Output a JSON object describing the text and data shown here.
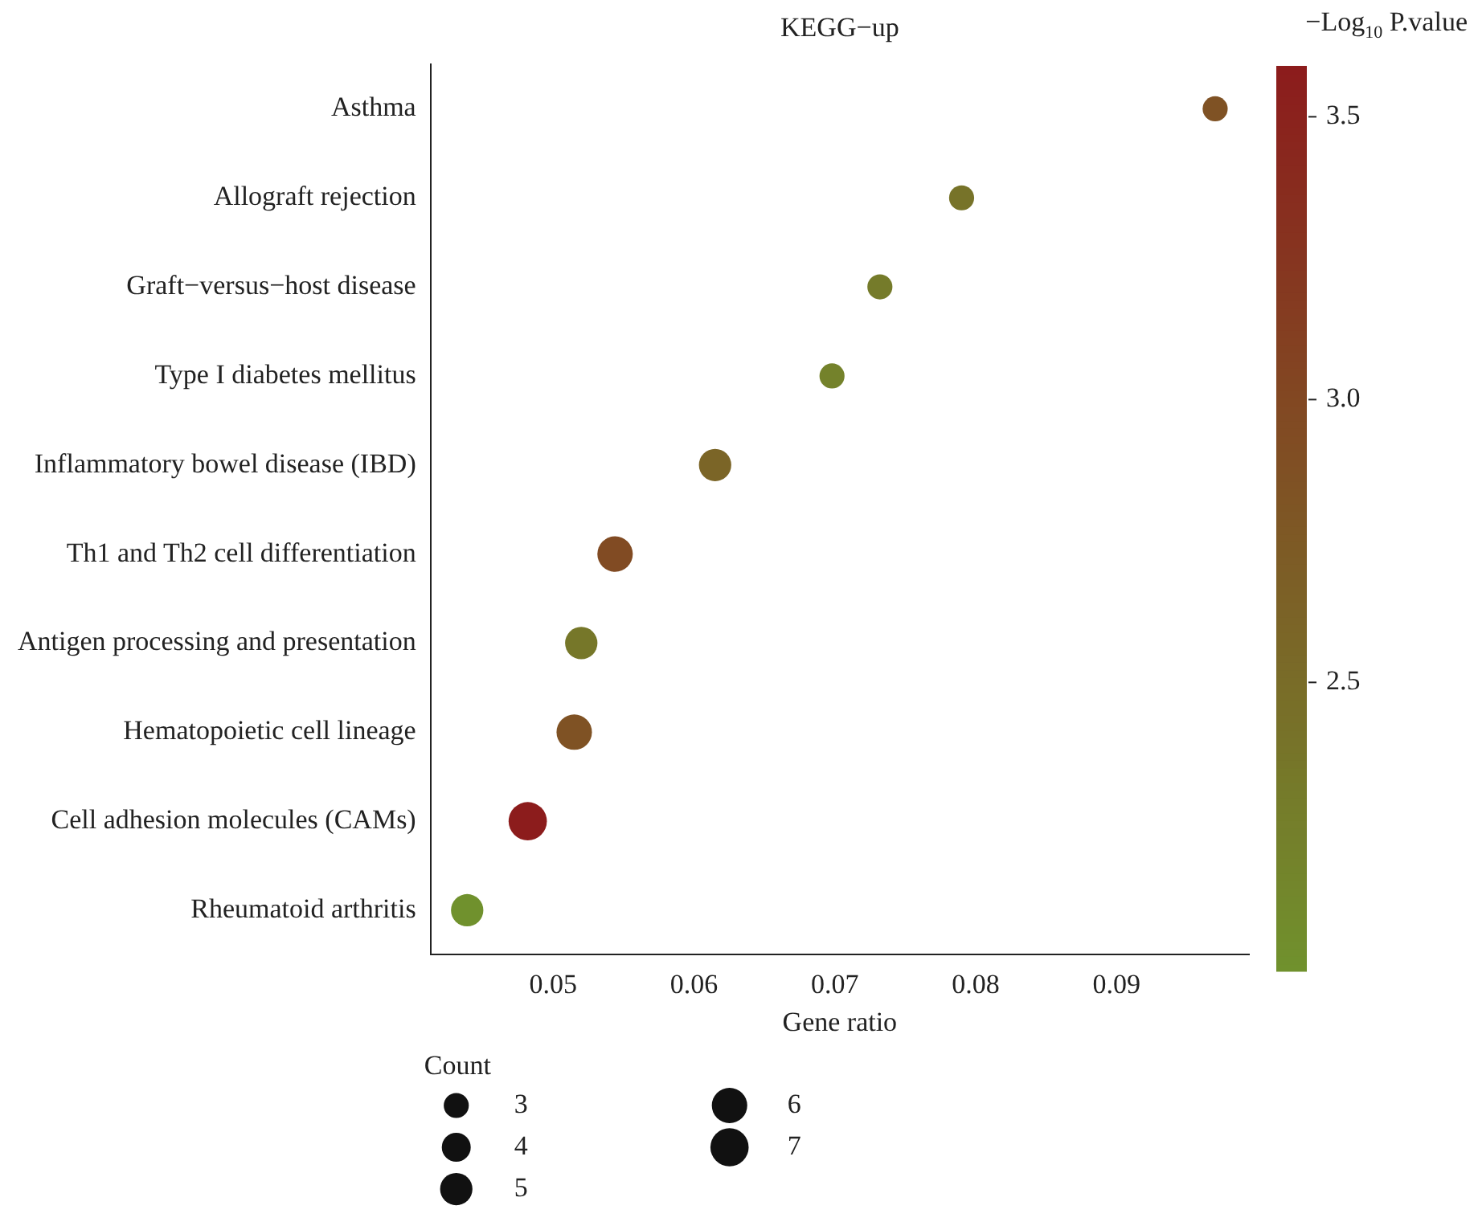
{
  "chart_data": {
    "type": "bubble",
    "orientation": "horizontal",
    "title": "KEGG−up",
    "xlabel": "Gene ratio",
    "clabel": "−Log$_{10}$ P.value",
    "legend_title": "Count",
    "categories": [
      "Asthma",
      "Allograft rejection",
      "Graft−versus−host disease",
      "Type I diabetes mellitus",
      "Inflammatory bowel disease (IBD)",
      "Th1 and Th2 cell differentiation",
      "Antigen processing and presentation",
      "Hematopoietic cell lineage",
      "Cell adhesion molecules (CAMs)",
      "Rheumatoid arthritis"
    ],
    "values": [
      0.097,
      0.079,
      0.0732,
      0.0698,
      0.0615,
      0.0544,
      0.052,
      0.0515,
      0.0482,
      0.0439
    ],
    "sizes": [
      3,
      3,
      3,
      3,
      5,
      6,
      5,
      6,
      7,
      5
    ],
    "size_legend": [
      3,
      4,
      5,
      6,
      7
    ],
    "cvalues": [
      2.85,
      2.4,
      2.3,
      2.2,
      2.6,
      2.95,
      2.35,
      2.85,
      3.59,
      1.99
    ],
    "colors": [
      "#7f5224",
      "#777329",
      "#757b2a",
      "#74822b",
      "#7b6527",
      "#814b23",
      "#767729",
      "#7f5224",
      "#8c1c1c",
      "#70912d"
    ],
    "clim": [
      1.99,
      3.59
    ],
    "cticks": [
      2.5,
      {
        "value": 3,
        "label": "3.0"
      },
      3.5
    ],
    "xlim": [
      0.0413,
      0.0994
    ],
    "xticks": [
      0.05,
      0.06,
      0.07,
      0.08,
      0.09
    ]
  }
}
